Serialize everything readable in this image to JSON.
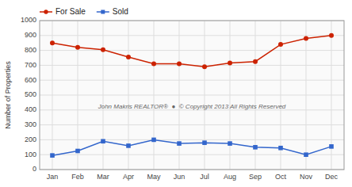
{
  "chart_data": {
    "type": "line",
    "categories": [
      "Jan",
      "Feb",
      "Mar",
      "Apr",
      "May",
      "Jun",
      "Jul",
      "Aug",
      "Sep",
      "Oct",
      "Nov",
      "Dec"
    ],
    "series": [
      {
        "name": "For Sale",
        "color": "#cc2200",
        "marker": "circle",
        "line_style": "solid",
        "values": [
          850,
          820,
          805,
          755,
          710,
          710,
          690,
          715,
          725,
          840,
          880,
          900
        ]
      },
      {
        "name": "Sold",
        "color": "#3366cc",
        "marker": "square",
        "line_style": "solid",
        "values": [
          95,
          125,
          190,
          160,
          200,
          175,
          180,
          175,
          150,
          145,
          100,
          155
        ]
      }
    ],
    "ylabel": "Number of Properties",
    "ylim": [
      0,
      1000
    ],
    "yticks": [
      0,
      100,
      200,
      300,
      400,
      500,
      600,
      700,
      800,
      900,
      1000
    ],
    "grid": true,
    "legend": "upper left",
    "annotation": "John Makris REALTOR®  ●  © Copyright 2013 All Rights Reserved"
  }
}
